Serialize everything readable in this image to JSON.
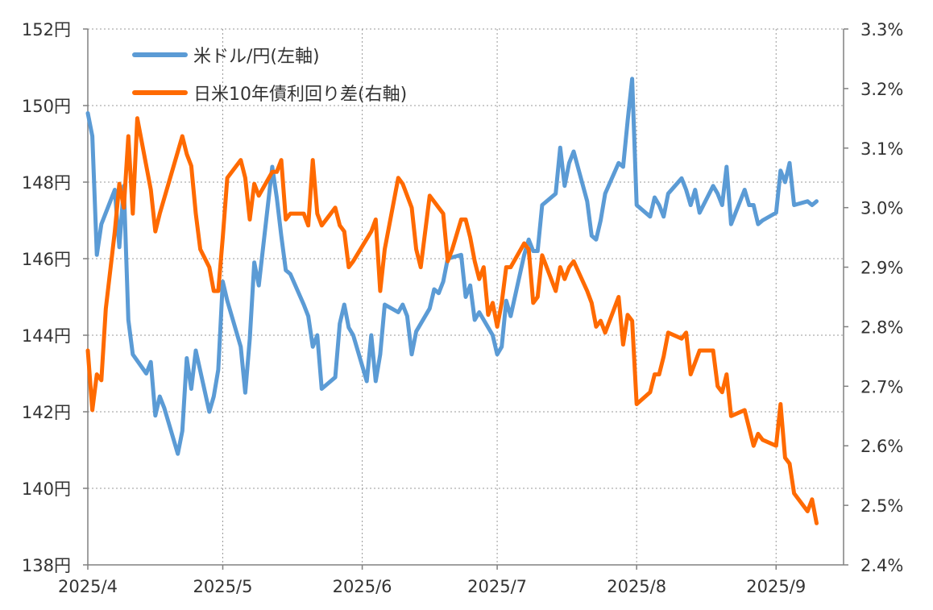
{
  "chart_data": {
    "type": "line",
    "x_tick_labels": [
      "2025/4",
      "2025/5",
      "2025/6",
      "2025/7",
      "2025/8",
      "2025/9"
    ],
    "x_tick_dates": [
      "2025-04-01",
      "2025-05-01",
      "2025-06-01",
      "2025-07-01",
      "2025-08-01",
      "2025-09-01"
    ],
    "x_range": [
      "2025-04-01",
      "2025-09-16"
    ],
    "y_left": {
      "range": [
        138,
        152
      ],
      "ticks": [
        138,
        140,
        142,
        144,
        146,
        148,
        150,
        152
      ],
      "tick_labels": [
        "138円",
        "140円",
        "142円",
        "144円",
        "146円",
        "148円",
        "150円",
        "152円"
      ]
    },
    "y_right": {
      "range": [
        2.4,
        3.3
      ],
      "ticks": [
        2.4,
        2.5,
        2.6,
        2.7,
        2.8,
        2.9,
        3.0,
        3.1,
        3.2,
        3.3
      ],
      "tick_labels": [
        "2.4%",
        "2.5%",
        "2.6%",
        "2.7%",
        "2.8%",
        "2.9%",
        "3.0%",
        "3.1%",
        "3.2%",
        "3.3%"
      ]
    },
    "grid": "dotted horizontal and vertical",
    "legend_position": "top-left",
    "series": [
      {
        "name": "米ドル/円(左軸)",
        "axis": "left",
        "color": "#5B9BD5",
        "points": [
          [
            "2025-04-01",
            149.8
          ],
          [
            "2025-04-02",
            149.2
          ],
          [
            "2025-04-03",
            146.1
          ],
          [
            "2025-04-04",
            146.9
          ],
          [
            "2025-04-07",
            147.8
          ],
          [
            "2025-04-08",
            146.3
          ],
          [
            "2025-04-09",
            147.9
          ],
          [
            "2025-04-10",
            144.4
          ],
          [
            "2025-04-11",
            143.5
          ],
          [
            "2025-04-14",
            143.0
          ],
          [
            "2025-04-15",
            143.3
          ],
          [
            "2025-04-16",
            141.9
          ],
          [
            "2025-04-17",
            142.4
          ],
          [
            "2025-04-18",
            142.1
          ],
          [
            "2025-04-21",
            140.9
          ],
          [
            "2025-04-22",
            141.5
          ],
          [
            "2025-04-23",
            143.4
          ],
          [
            "2025-04-24",
            142.6
          ],
          [
            "2025-04-25",
            143.6
          ],
          [
            "2025-04-28",
            142.0
          ],
          [
            "2025-04-29",
            142.4
          ],
          [
            "2025-04-30",
            143.1
          ],
          [
            "2025-05-01",
            145.4
          ],
          [
            "2025-05-02",
            144.9
          ],
          [
            "2025-05-05",
            143.7
          ],
          [
            "2025-05-06",
            142.5
          ],
          [
            "2025-05-07",
            143.9
          ],
          [
            "2025-05-08",
            145.9
          ],
          [
            "2025-05-09",
            145.3
          ],
          [
            "2025-05-12",
            148.4
          ],
          [
            "2025-05-13",
            147.6
          ],
          [
            "2025-05-14",
            146.6
          ],
          [
            "2025-05-15",
            145.7
          ],
          [
            "2025-05-16",
            145.6
          ],
          [
            "2025-05-19",
            144.8
          ],
          [
            "2025-05-20",
            144.5
          ],
          [
            "2025-05-21",
            143.7
          ],
          [
            "2025-05-22",
            144.0
          ],
          [
            "2025-05-23",
            142.6
          ],
          [
            "2025-05-26",
            142.9
          ],
          [
            "2025-05-27",
            144.3
          ],
          [
            "2025-05-28",
            144.8
          ],
          [
            "2025-05-29",
            144.2
          ],
          [
            "2025-05-30",
            144.0
          ],
          [
            "2025-06-02",
            142.8
          ],
          [
            "2025-06-03",
            144.0
          ],
          [
            "2025-06-04",
            142.8
          ],
          [
            "2025-06-05",
            143.5
          ],
          [
            "2025-06-06",
            144.8
          ],
          [
            "2025-06-09",
            144.6
          ],
          [
            "2025-06-10",
            144.8
          ],
          [
            "2025-06-11",
            144.5
          ],
          [
            "2025-06-12",
            143.5
          ],
          [
            "2025-06-13",
            144.1
          ],
          [
            "2025-06-16",
            144.7
          ],
          [
            "2025-06-17",
            145.2
          ],
          [
            "2025-06-18",
            145.1
          ],
          [
            "2025-06-19",
            145.4
          ],
          [
            "2025-06-20",
            146.0
          ],
          [
            "2025-06-23",
            146.1
          ],
          [
            "2025-06-24",
            145.0
          ],
          [
            "2025-06-25",
            145.3
          ],
          [
            "2025-06-26",
            144.4
          ],
          [
            "2025-06-27",
            144.6
          ],
          [
            "2025-06-30",
            144.0
          ],
          [
            "2025-07-01",
            143.5
          ],
          [
            "2025-07-02",
            143.7
          ],
          [
            "2025-07-03",
            144.9
          ],
          [
            "2025-07-04",
            144.5
          ],
          [
            "2025-07-07",
            146.1
          ],
          [
            "2025-07-08",
            146.5
          ],
          [
            "2025-07-09",
            146.2
          ],
          [
            "2025-07-10",
            146.2
          ],
          [
            "2025-07-11",
            147.4
          ],
          [
            "2025-07-14",
            147.7
          ],
          [
            "2025-07-15",
            148.9
          ],
          [
            "2025-07-16",
            147.9
          ],
          [
            "2025-07-17",
            148.5
          ],
          [
            "2025-07-18",
            148.8
          ],
          [
            "2025-07-21",
            147.5
          ],
          [
            "2025-07-22",
            146.6
          ],
          [
            "2025-07-23",
            146.5
          ],
          [
            "2025-07-24",
            147.0
          ],
          [
            "2025-07-25",
            147.7
          ],
          [
            "2025-07-28",
            148.5
          ],
          [
            "2025-07-29",
            148.4
          ],
          [
            "2025-07-30",
            149.6
          ],
          [
            "2025-07-31",
            150.7
          ],
          [
            "2025-08-01",
            147.4
          ],
          [
            "2025-08-04",
            147.1
          ],
          [
            "2025-08-05",
            147.6
          ],
          [
            "2025-08-06",
            147.4
          ],
          [
            "2025-08-07",
            147.1
          ],
          [
            "2025-08-08",
            147.7
          ],
          [
            "2025-08-11",
            148.1
          ],
          [
            "2025-08-12",
            147.8
          ],
          [
            "2025-08-13",
            147.4
          ],
          [
            "2025-08-14",
            147.8
          ],
          [
            "2025-08-15",
            147.2
          ],
          [
            "2025-08-18",
            147.9
          ],
          [
            "2025-08-19",
            147.7
          ],
          [
            "2025-08-20",
            147.4
          ],
          [
            "2025-08-21",
            148.4
          ],
          [
            "2025-08-22",
            146.9
          ],
          [
            "2025-08-25",
            147.8
          ],
          [
            "2025-08-26",
            147.4
          ],
          [
            "2025-08-27",
            147.4
          ],
          [
            "2025-08-28",
            146.9
          ],
          [
            "2025-08-29",
            147.0
          ],
          [
            "2025-09-01",
            147.2
          ],
          [
            "2025-09-02",
            148.3
          ],
          [
            "2025-09-03",
            148.0
          ],
          [
            "2025-09-04",
            148.5
          ],
          [
            "2025-09-05",
            147.4
          ],
          [
            "2025-09-08",
            147.5
          ],
          [
            "2025-09-09",
            147.4
          ],
          [
            "2025-09-10",
            147.5
          ]
        ]
      },
      {
        "name": "日米10年債利回り差(右軸)",
        "axis": "right",
        "color": "#FF6A00",
        "points": [
          [
            "2025-04-01",
            2.76
          ],
          [
            "2025-04-02",
            2.66
          ],
          [
            "2025-04-03",
            2.72
          ],
          [
            "2025-04-04",
            2.71
          ],
          [
            "2025-04-05",
            2.83
          ],
          [
            "2025-04-07",
            2.96
          ],
          [
            "2025-04-08",
            3.04
          ],
          [
            "2025-04-09",
            3.0
          ],
          [
            "2025-04-10",
            3.12
          ],
          [
            "2025-04-11",
            2.99
          ],
          [
            "2025-04-12",
            3.15
          ],
          [
            "2025-04-15",
            3.03
          ],
          [
            "2025-04-16",
            2.96
          ],
          [
            "2025-04-17",
            2.99
          ],
          [
            "2025-04-22",
            3.12
          ],
          [
            "2025-04-23",
            3.09
          ],
          [
            "2025-04-24",
            3.07
          ],
          [
            "2025-04-25",
            2.99
          ],
          [
            "2025-04-26",
            2.93
          ],
          [
            "2025-04-28",
            2.9
          ],
          [
            "2025-04-29",
            2.86
          ],
          [
            "2025-04-30",
            2.86
          ],
          [
            "2025-05-01",
            2.95
          ],
          [
            "2025-05-02",
            3.05
          ],
          [
            "2025-05-05",
            3.08
          ],
          [
            "2025-05-06",
            3.05
          ],
          [
            "2025-05-07",
            2.98
          ],
          [
            "2025-05-08",
            3.04
          ],
          [
            "2025-05-09",
            3.02
          ],
          [
            "2025-05-12",
            3.06
          ],
          [
            "2025-05-13",
            3.06
          ],
          [
            "2025-05-14",
            3.08
          ],
          [
            "2025-05-15",
            2.98
          ],
          [
            "2025-05-16",
            2.99
          ],
          [
            "2025-05-19",
            2.99
          ],
          [
            "2025-05-20",
            2.97
          ],
          [
            "2025-05-21",
            3.08
          ],
          [
            "2025-05-22",
            2.99
          ],
          [
            "2025-05-23",
            2.97
          ],
          [
            "2025-05-26",
            3.0
          ],
          [
            "2025-05-27",
            2.97
          ],
          [
            "2025-05-28",
            2.96
          ],
          [
            "2025-05-29",
            2.9
          ],
          [
            "2025-05-30",
            2.91
          ],
          [
            "2025-06-03",
            2.96
          ],
          [
            "2025-06-04",
            2.98
          ],
          [
            "2025-06-05",
            2.86
          ],
          [
            "2025-06-06",
            2.93
          ],
          [
            "2025-06-09",
            3.05
          ],
          [
            "2025-06-10",
            3.04
          ],
          [
            "2025-06-11",
            3.02
          ],
          [
            "2025-06-12",
            3.0
          ],
          [
            "2025-06-13",
            2.93
          ],
          [
            "2025-06-14",
            2.9
          ],
          [
            "2025-06-16",
            3.02
          ],
          [
            "2025-06-17",
            3.01
          ],
          [
            "2025-06-18",
            3.0
          ],
          [
            "2025-06-19",
            2.99
          ],
          [
            "2025-06-20",
            2.91
          ],
          [
            "2025-06-21",
            2.93
          ],
          [
            "2025-06-23",
            2.98
          ],
          [
            "2025-06-24",
            2.98
          ],
          [
            "2025-06-25",
            2.95
          ],
          [
            "2025-06-26",
            2.91
          ],
          [
            "2025-06-27",
            2.88
          ],
          [
            "2025-06-28",
            2.9
          ],
          [
            "2025-06-29",
            2.82
          ],
          [
            "2025-06-30",
            2.84
          ],
          [
            "2025-07-01",
            2.8
          ],
          [
            "2025-07-02",
            2.84
          ],
          [
            "2025-07-03",
            2.9
          ],
          [
            "2025-07-04",
            2.9
          ],
          [
            "2025-07-07",
            2.94
          ],
          [
            "2025-07-08",
            2.93
          ],
          [
            "2025-07-09",
            2.84
          ],
          [
            "2025-07-10",
            2.85
          ],
          [
            "2025-07-11",
            2.92
          ],
          [
            "2025-07-14",
            2.86
          ],
          [
            "2025-07-15",
            2.9
          ],
          [
            "2025-07-16",
            2.88
          ],
          [
            "2025-07-17",
            2.9
          ],
          [
            "2025-07-18",
            2.91
          ],
          [
            "2025-07-21",
            2.86
          ],
          [
            "2025-07-22",
            2.84
          ],
          [
            "2025-07-23",
            2.8
          ],
          [
            "2025-07-24",
            2.81
          ],
          [
            "2025-07-25",
            2.79
          ],
          [
            "2025-07-28",
            2.85
          ],
          [
            "2025-07-29",
            2.77
          ],
          [
            "2025-07-30",
            2.82
          ],
          [
            "2025-07-31",
            2.81
          ],
          [
            "2025-08-01",
            2.67
          ],
          [
            "2025-08-04",
            2.69
          ],
          [
            "2025-08-05",
            2.72
          ],
          [
            "2025-08-06",
            2.72
          ],
          [
            "2025-08-07",
            2.75
          ],
          [
            "2025-08-08",
            2.79
          ],
          [
            "2025-08-11",
            2.78
          ],
          [
            "2025-08-12",
            2.79
          ],
          [
            "2025-08-13",
            2.72
          ],
          [
            "2025-08-14",
            2.74
          ],
          [
            "2025-08-15",
            2.76
          ],
          [
            "2025-08-18",
            2.76
          ],
          [
            "2025-08-19",
            2.7
          ],
          [
            "2025-08-20",
            2.69
          ],
          [
            "2025-08-21",
            2.72
          ],
          [
            "2025-08-22",
            2.65
          ],
          [
            "2025-08-25",
            2.66
          ],
          [
            "2025-08-26",
            2.63
          ],
          [
            "2025-08-27",
            2.6
          ],
          [
            "2025-08-28",
            2.62
          ],
          [
            "2025-08-29",
            2.61
          ],
          [
            "2025-09-01",
            2.6
          ],
          [
            "2025-09-02",
            2.67
          ],
          [
            "2025-09-03",
            2.58
          ],
          [
            "2025-09-04",
            2.57
          ],
          [
            "2025-09-05",
            2.52
          ],
          [
            "2025-09-08",
            2.49
          ],
          [
            "2025-09-09",
            2.51
          ],
          [
            "2025-09-10",
            2.47
          ]
        ]
      }
    ]
  }
}
